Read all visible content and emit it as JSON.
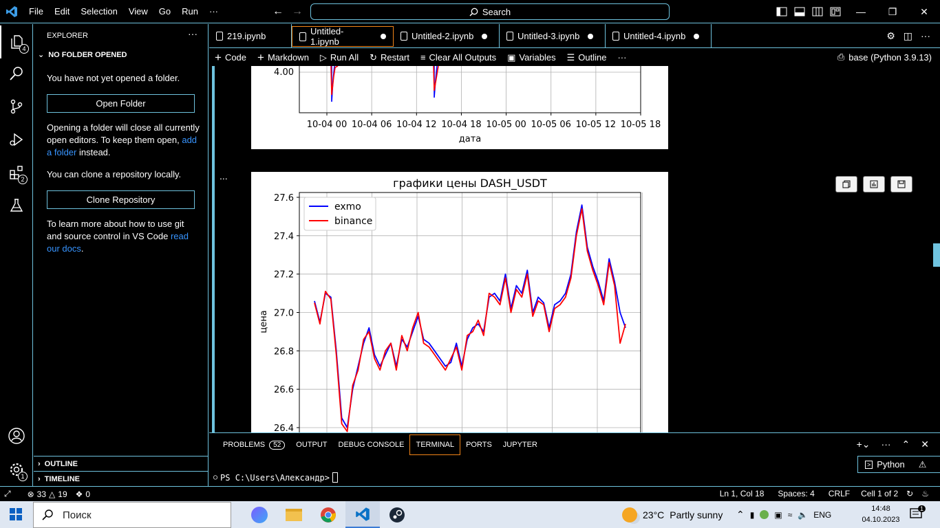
{
  "menu": [
    "File",
    "Edit",
    "Selection",
    "View",
    "Go",
    "Run",
    "···"
  ],
  "search": {
    "label": "Search"
  },
  "activity": {
    "explorer_badge": "4",
    "extensions_badge": "2",
    "settings_badge": "1"
  },
  "sidebar": {
    "header": "EXPLORER",
    "more": "···",
    "section": "NO FOLDER OPENED",
    "text1": "You have not yet opened a folder.",
    "open_folder": "Open Folder",
    "text2_a": "Opening a folder will close all currently open editors. To keep them open, ",
    "text2_link": "add a folder",
    "text2_b": " instead.",
    "text3": "You can clone a repository locally.",
    "clone_repo": "Clone Repository",
    "text4_a": "To learn more about how to use git and source control in VS Code ",
    "text4_link": "read our docs",
    "text4_b": ".",
    "outline": "OUTLINE",
    "timeline": "TIMELINE"
  },
  "tabs": [
    "219.ipynb",
    "Untitled-1.ipynb",
    "Untitled-2.ipynb",
    "Untitled-3.ipynb",
    "Untitled-4.ipynb"
  ],
  "toolbar": {
    "code": "Code",
    "markdown": "Markdown",
    "run_all": "Run All",
    "restart": "Restart",
    "clear": "Clear All Outputs",
    "variables": "Variables",
    "outline": "Outline",
    "more": "···",
    "kernel": "base (Python 3.9.13)"
  },
  "cell": {
    "more": "..."
  },
  "chart_data": [
    {
      "type": "line",
      "title": "",
      "xlabel": "дата",
      "ylabel": "",
      "x_ticks": [
        "10-04 00",
        "10-04 06",
        "10-04 12",
        "10-04 18",
        "10-05 00",
        "10-05 06",
        "10-05 12",
        "10-05 18"
      ],
      "y_ticks": [
        "4.00"
      ],
      "grid": true
    },
    {
      "type": "line",
      "title": "графики цены DASH_USDT",
      "xlabel": "",
      "ylabel": "цена",
      "ylim": [
        26.4,
        27.6
      ],
      "y_ticks": [
        26.4,
        26.6,
        26.8,
        27.0,
        27.2,
        27.4,
        27.6
      ],
      "grid": true,
      "legend": "top-left",
      "series": [
        {
          "name": "exmo",
          "color": "#0000ff",
          "values": [
            27.06,
            26.95,
            27.1,
            27.08,
            26.8,
            26.45,
            26.4,
            26.6,
            26.72,
            26.84,
            26.92,
            26.78,
            26.72,
            26.78,
            26.84,
            26.72,
            26.86,
            26.82,
            26.9,
            26.98,
            26.86,
            26.84,
            26.8,
            26.76,
            26.72,
            26.74,
            26.84,
            26.72,
            26.86,
            26.92,
            26.94,
            26.9,
            27.08,
            27.1,
            27.06,
            27.2,
            27.02,
            27.14,
            27.1,
            27.22,
            27.0,
            27.08,
            27.05,
            26.92,
            27.04,
            27.06,
            27.1,
            27.2,
            27.42,
            27.56,
            27.34,
            27.24,
            27.16,
            27.06,
            27.28,
            27.16,
            27.0,
            26.92
          ]
        },
        {
          "name": "binance",
          "color": "#ff0000",
          "values": [
            27.05,
            26.94,
            27.11,
            27.07,
            26.78,
            26.42,
            26.38,
            26.62,
            26.7,
            26.86,
            26.9,
            26.76,
            26.7,
            26.8,
            26.84,
            26.7,
            26.88,
            26.8,
            26.92,
            27.0,
            26.84,
            26.82,
            26.78,
            26.74,
            26.7,
            26.76,
            26.82,
            26.7,
            26.88,
            26.9,
            26.96,
            26.88,
            27.1,
            27.08,
            27.04,
            27.18,
            27.0,
            27.12,
            27.08,
            27.2,
            26.98,
            27.06,
            27.04,
            26.9,
            27.02,
            27.04,
            27.08,
            27.18,
            27.4,
            27.54,
            27.32,
            27.22,
            27.14,
            27.04,
            27.26,
            27.14,
            26.84,
            26.94
          ]
        }
      ]
    }
  ],
  "panel": {
    "problems": "PROBLEMS",
    "problems_count": "52",
    "output": "OUTPUT",
    "debug": "DEBUG CONSOLE",
    "terminal": "TERMINAL",
    "ports": "PORTS",
    "jupyter": "JUPYTER",
    "prompt": "PS C:\\Users\\Александр>",
    "shell": "Python"
  },
  "status": {
    "errors": "33",
    "warnings": "19",
    "ports": "0",
    "position": "Ln 1, Col 18",
    "spaces": "Spaces: 4",
    "eol": "CRLF",
    "cell": "Cell 1 of 2"
  },
  "taskbar": {
    "search": "Поиск",
    "temp": "23°C",
    "weather": "Partly sunny",
    "lang": "ENG",
    "time": "14:48",
    "date": "04.10.2023",
    "notif_count": "1"
  }
}
